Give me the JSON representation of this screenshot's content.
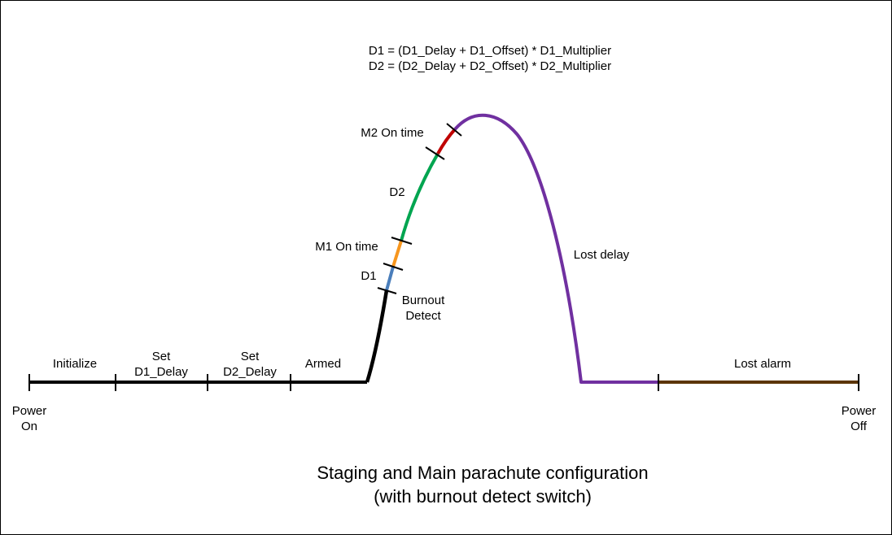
{
  "formula": {
    "line1": "D1 = (D1_Delay + D1_Offset) * D1_Multiplier",
    "line2": "D2 = (D2_Delay + D2_Offset) * D2_Multiplier"
  },
  "phases": {
    "initialize": "Initialize",
    "set_d1_line1": "Set",
    "set_d1_line2": "D1_Delay",
    "set_d2_line1": "Set",
    "set_d2_line2": "D2_Delay",
    "armed": "Armed",
    "lost_alarm": "Lost alarm"
  },
  "flight": {
    "burnout_line1": "Burnout",
    "burnout_line2": "Detect",
    "d1": "D1",
    "m1_on_time": "M1 On time",
    "d2": "D2",
    "m2_on_time": "M2 On time",
    "lost_delay": "Lost delay"
  },
  "endpoints": {
    "power_on_line1": "Power",
    "power_on_line2": "On",
    "power_off_line1": "Power",
    "power_off_line2": "Off"
  },
  "caption": {
    "line1": "Staging and Main parachute configuration",
    "line2": "(with burnout detect switch)"
  },
  "colors": {
    "ground": "#000000",
    "d1": "#4a7ebb",
    "m1": "#f7961e",
    "d2": "#00a550",
    "m2": "#c00000",
    "lost_delay": "#7030a0",
    "lost_alarm": "#5c3508"
  }
}
